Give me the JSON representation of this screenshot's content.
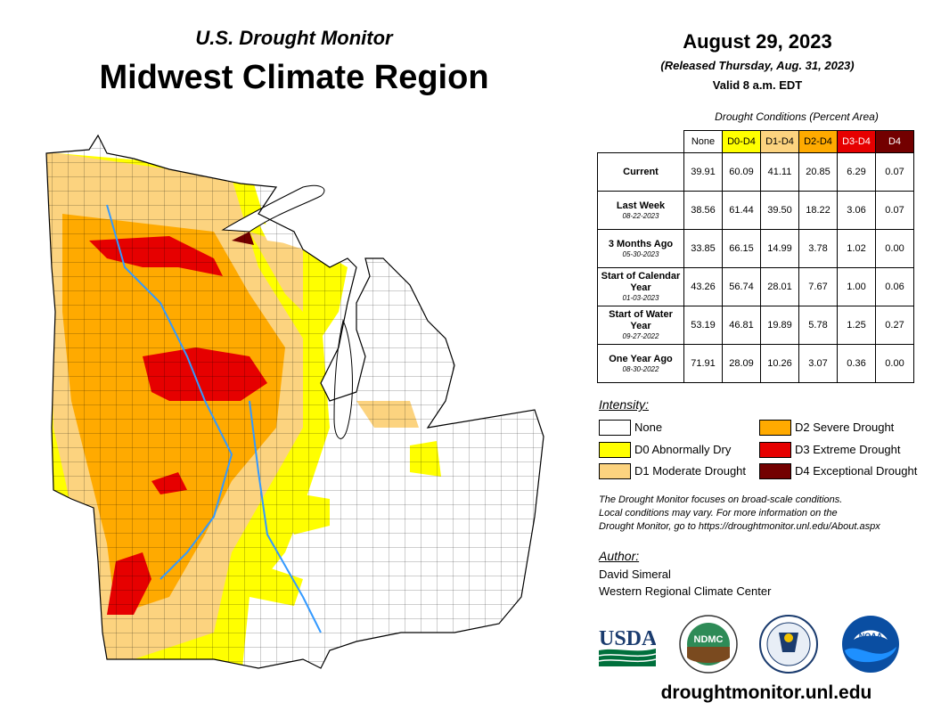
{
  "header": {
    "subtitle": "U.S. Drought Monitor",
    "title": "Midwest Climate Region",
    "date": "August 29, 2023",
    "released": "(Released Thursday, Aug. 31, 2023)",
    "valid": "Valid 8 a.m. EDT"
  },
  "table": {
    "caption": "Drought Conditions (Percent Area)",
    "columns": [
      {
        "label": "None",
        "color": "#ffffff",
        "text": "#000000"
      },
      {
        "label": "D0-D4",
        "color": "#ffff00",
        "text": "#000000"
      },
      {
        "label": "D1-D4",
        "color": "#fcd37f",
        "text": "#000000"
      },
      {
        "label": "D2-D4",
        "color": "#ffaa00",
        "text": "#000000"
      },
      {
        "label": "D3-D4",
        "color": "#e60000",
        "text": "#ffffff"
      },
      {
        "label": "D4",
        "color": "#730000",
        "text": "#ffffff"
      }
    ],
    "rows": [
      {
        "label": "Current",
        "date": "",
        "values": [
          "39.91",
          "60.09",
          "41.11",
          "20.85",
          "6.29",
          "0.07"
        ]
      },
      {
        "label": "Last Week",
        "date": "08-22-2023",
        "values": [
          "38.56",
          "61.44",
          "39.50",
          "18.22",
          "3.06",
          "0.07"
        ]
      },
      {
        "label": "3 Months Ago",
        "date": "05-30-2023",
        "values": [
          "33.85",
          "66.15",
          "14.99",
          "3.78",
          "1.02",
          "0.00"
        ]
      },
      {
        "label": "Start of Calendar Year",
        "date": "01-03-2023",
        "values": [
          "43.26",
          "56.74",
          "28.01",
          "7.67",
          "1.00",
          "0.06"
        ]
      },
      {
        "label": "Start of Water Year",
        "date": "09-27-2022",
        "values": [
          "53.19",
          "46.81",
          "19.89",
          "5.78",
          "1.25",
          "0.27"
        ]
      },
      {
        "label": "One Year Ago",
        "date": "08-30-2022",
        "values": [
          "71.91",
          "28.09",
          "10.26",
          "3.07",
          "0.36",
          "0.00"
        ]
      }
    ]
  },
  "legend": {
    "title": "Intensity:",
    "items": [
      {
        "label": "None",
        "color": "#ffffff"
      },
      {
        "label": "D0 Abnormally Dry",
        "color": "#ffff00"
      },
      {
        "label": "D1 Moderate Drought",
        "color": "#fcd37f"
      },
      {
        "label": "D2 Severe Drought",
        "color": "#ffaa00"
      },
      {
        "label": "D3 Extreme Drought",
        "color": "#e60000"
      },
      {
        "label": "D4 Exceptional Drought",
        "color": "#730000"
      }
    ]
  },
  "note": {
    "line1": "The Drought Monitor focuses on broad-scale conditions.",
    "line2": "Local conditions may vary. For more information on the",
    "line3": "Drought Monitor, go to https://droughtmonitor.unl.edu/About.aspx"
  },
  "author": {
    "title": "Author:",
    "name": "David Simeral",
    "org": "Western Regional Climate Center"
  },
  "logos": {
    "usda": "USDA",
    "ndmc": "NDMC",
    "noaa": "NOAA"
  },
  "footer": {
    "url": "droughtmonitor.unl.edu"
  }
}
